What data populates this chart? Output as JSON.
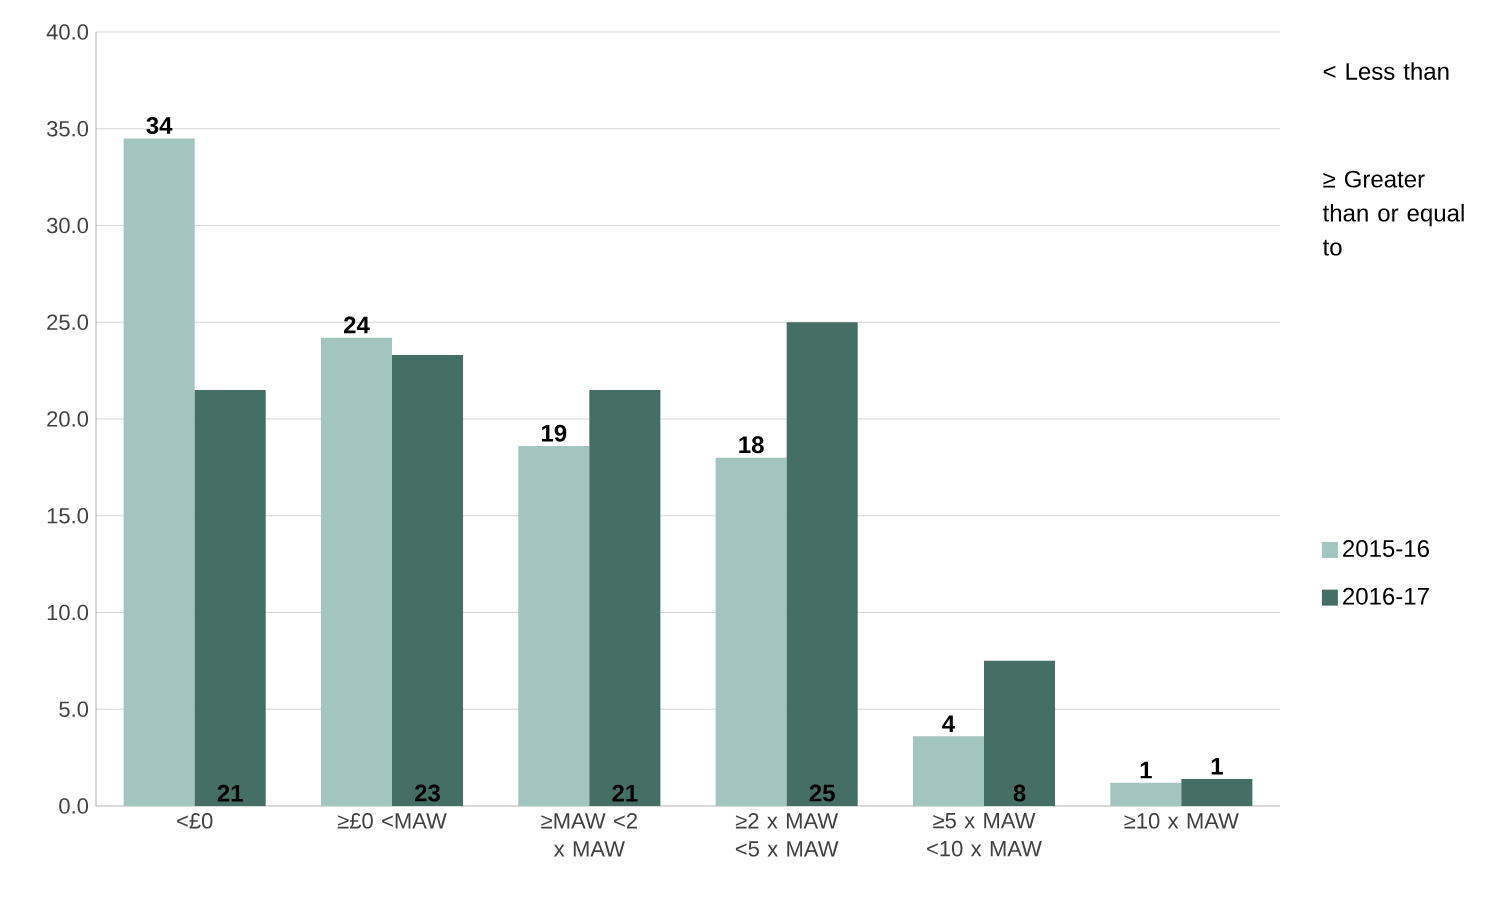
{
  "chart_data": {
    "type": "bar",
    "categories": [
      "<£0",
      "≥£0 <MAW",
      "≥MAW <2 x MAW",
      "≥2 x MAW <5 x MAW",
      "≥5 x MAW <10 x MAW",
      "≥10 x MAW"
    ],
    "series": [
      {
        "name": "2015-16",
        "color": "#a3c5bf",
        "values": [
          34.5,
          24.2,
          18.6,
          18.0,
          3.6,
          1.2
        ],
        "value_labels": [
          "34",
          "24",
          "19",
          "18",
          "4",
          "1"
        ]
      },
      {
        "name": "2016-17",
        "color": "#456f65",
        "values": [
          21.5,
          23.3,
          21.5,
          25.0,
          7.5,
          1.4
        ],
        "value_labels": [
          "21",
          "23",
          "21",
          "25",
          "8",
          "1"
        ]
      }
    ],
    "ylim": [
      0,
      40
    ],
    "yticks": [
      {
        "value": 0,
        "label": "0.0"
      },
      {
        "value": 5,
        "label": "5.0"
      },
      {
        "value": 10,
        "label": "10.0"
      },
      {
        "value": 15,
        "label": "15.0"
      },
      {
        "value": 20,
        "label": "20.0"
      },
      {
        "value": 25,
        "label": "25.0"
      },
      {
        "value": 30,
        "label": "30.0"
      },
      {
        "value": 35,
        "label": "35.0"
      },
      {
        "value": 40,
        "label": "40.0"
      }
    ],
    "grid": "y",
    "legend": "right",
    "annotations": [
      "< Less than",
      "≥ Greater than or equal to"
    ]
  }
}
